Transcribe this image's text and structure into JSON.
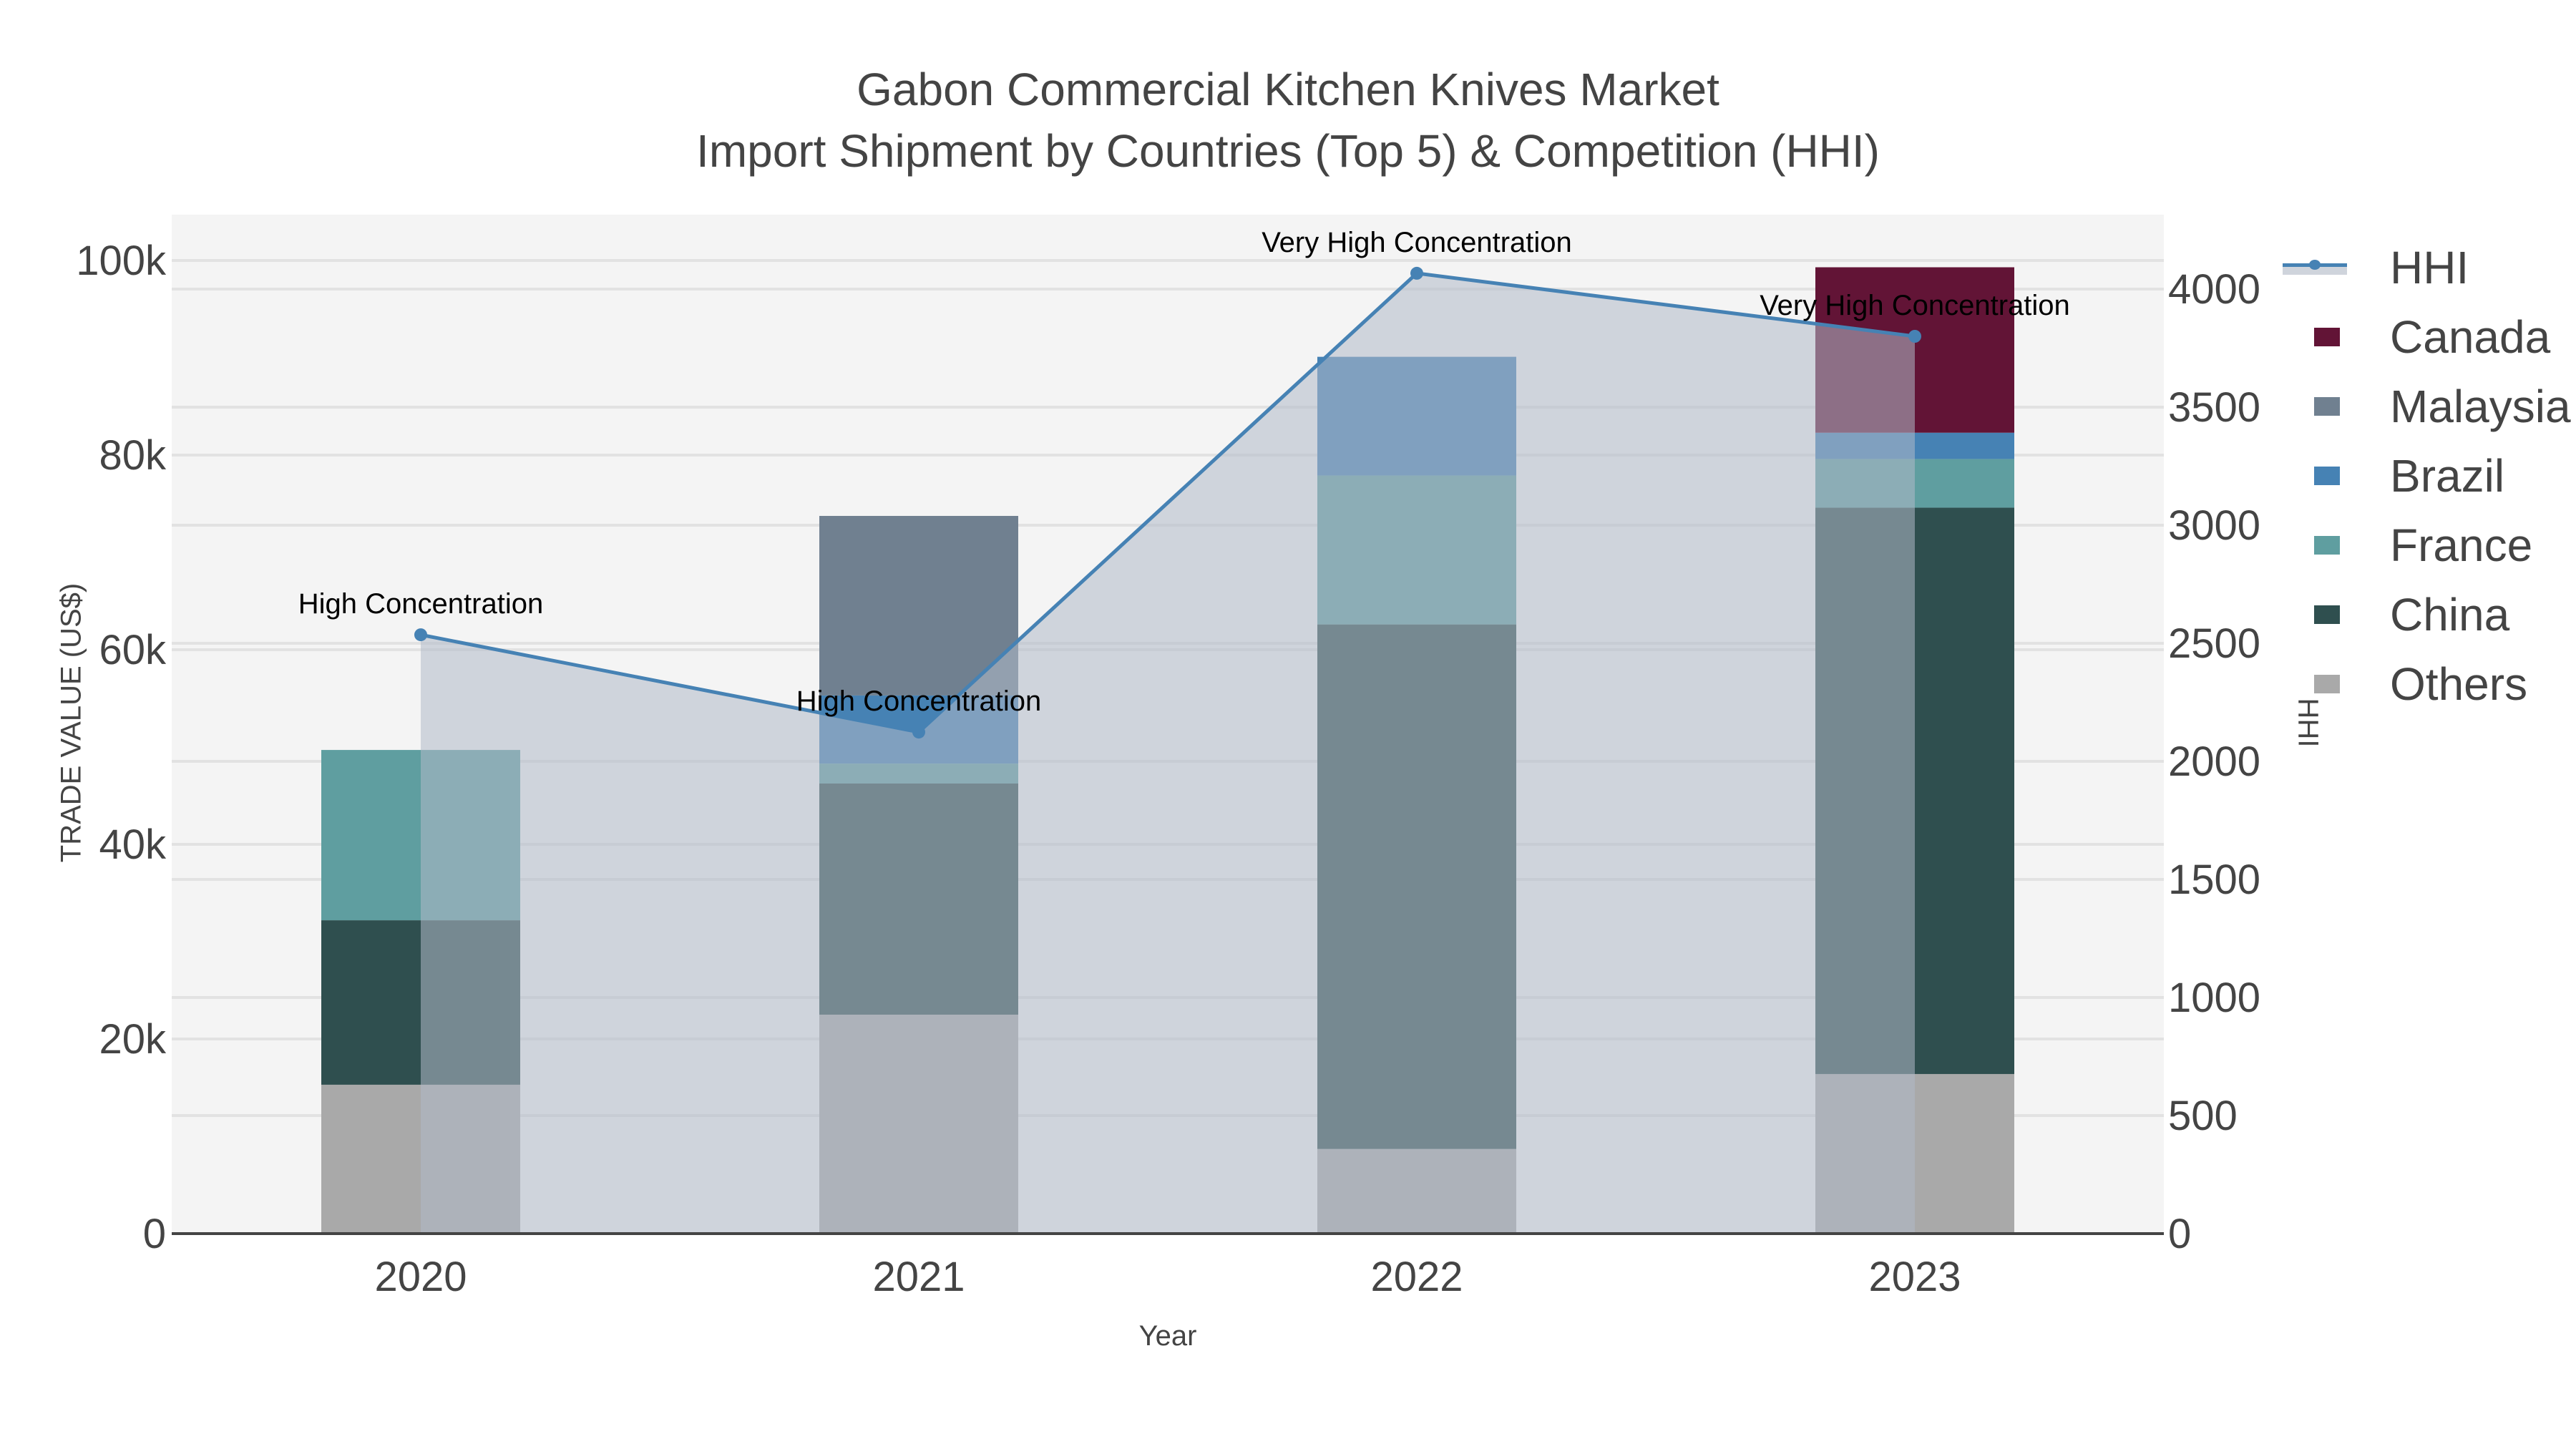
{
  "title": {
    "line1": "Gabon Commercial Kitchen Knives Market",
    "line2": "Import Shipment by Countries (Top 5) & Competition (HHI)"
  },
  "axes": {
    "x_title": "Year",
    "y_title": "TRADE VALUE (US$)",
    "y2_title": "HHI",
    "y_ticks": [
      "0",
      "20k",
      "40k",
      "60k",
      "80k",
      "100k"
    ],
    "y2_ticks": [
      "0",
      "500",
      "1000",
      "1500",
      "2000",
      "2500",
      "3000",
      "3500",
      "4000"
    ]
  },
  "legend": {
    "items": [
      {
        "label": "HHI",
        "type": "line",
        "color": "#4682b4"
      },
      {
        "label": "Canada",
        "type": "bar",
        "color": "#621436"
      },
      {
        "label": "Malaysia",
        "type": "bar",
        "color": "#708090"
      },
      {
        "label": "Brazil",
        "type": "bar",
        "color": "#4682b4"
      },
      {
        "label": "France",
        "type": "bar",
        "color": "#5f9ea0"
      },
      {
        "label": "China",
        "type": "bar",
        "color": "#2f4f4f"
      },
      {
        "label": "Others",
        "type": "bar",
        "color": "#a9a9a9"
      }
    ]
  },
  "annotations": [
    {
      "year": "2020",
      "text": "High Concentration"
    },
    {
      "year": "2021",
      "text": "High Concentration"
    },
    {
      "year": "2022",
      "text": "Very High Concentration"
    },
    {
      "year": "2023",
      "text": "Very High Concentration"
    }
  ],
  "chart_data": {
    "type": "bar",
    "subtype": "stacked bar with line overlay (secondary axis)",
    "title": "Gabon Commercial Kitchen Knives Market — Import Shipment by Countries (Top 5) & Competition (HHI)",
    "categories": [
      "2020",
      "2021",
      "2022",
      "2023"
    ],
    "xlabel": "Year",
    "ylabel": "TRADE VALUE (US$)",
    "y2label": "HHI",
    "ylim": [
      0,
      104000
    ],
    "y2lim": [
      0,
      4300
    ],
    "grid": true,
    "legend_position": "right",
    "series": [
      {
        "name": "Others",
        "type": "bar",
        "color": "#a9a9a9",
        "values": [
          15300,
          22500,
          8700,
          16400
        ]
      },
      {
        "name": "China",
        "type": "bar",
        "color": "#2f4f4f",
        "values": [
          16900,
          23750,
          53900,
          58200
        ]
      },
      {
        "name": "France",
        "type": "bar",
        "color": "#5f9ea0",
        "values": [
          17500,
          2050,
          15300,
          5000
        ]
      },
      {
        "name": "Brazil",
        "type": "bar",
        "color": "#4682b4",
        "values": [
          0,
          7000,
          12200,
          2700
        ]
      },
      {
        "name": "Malaysia",
        "type": "bar",
        "color": "#708090",
        "values": [
          0,
          18450,
          0,
          0
        ]
      },
      {
        "name": "Canada",
        "type": "bar",
        "color": "#621436",
        "values": [
          0,
          0,
          0,
          17000
        ]
      },
      {
        "name": "HHI",
        "type": "line",
        "axis": "y2",
        "color": "#4682b4",
        "values": [
          2536,
          2124,
          4067,
          3800
        ]
      }
    ],
    "annotations": [
      "High Concentration",
      "High Concentration",
      "Very High Concentration",
      "Very High Concentration"
    ]
  }
}
